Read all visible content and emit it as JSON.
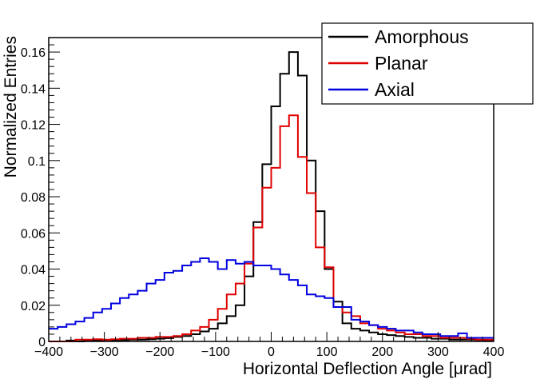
{
  "chart_data": {
    "type": "line",
    "style": "step-histogram",
    "xlabel": "Horizontal Deflection Angle [μrad]",
    "ylabel": "Normalized Entries",
    "xlim": [
      -400,
      400
    ],
    "ylim": [
      0,
      0.168
    ],
    "x_ticks": [
      -400,
      -300,
      -200,
      -100,
      0,
      100,
      200,
      300,
      400
    ],
    "x_tick_labels": [
      "−400",
      "−300",
      "−200",
      "−100",
      "0",
      "100",
      "200",
      "300",
      "400"
    ],
    "y_ticks": [
      0,
      0.02,
      0.04,
      0.06,
      0.08,
      0.1,
      0.12,
      0.14,
      0.16
    ],
    "y_tick_labels": [
      "0",
      "0.02",
      "0.04",
      "0.06",
      "0.08",
      "0.1",
      "0.12",
      "0.14",
      "0.16"
    ],
    "bin_edges_start": -400,
    "bin_width": 16,
    "legend_position": "top-right",
    "series": [
      {
        "name": "Amorphous",
        "color": "#000000",
        "values": [
          0.0,
          0.0,
          0.0005,
          0.0,
          0.0005,
          0.0005,
          0.0008,
          0.0005,
          0.0008,
          0.001,
          0.001,
          0.0012,
          0.0015,
          0.0018,
          0.0025,
          0.003,
          0.004,
          0.0055,
          0.007,
          0.01,
          0.014,
          0.02,
          0.036,
          0.066,
          0.098,
          0.13,
          0.148,
          0.16,
          0.147,
          0.1,
          0.072,
          0.04,
          0.022,
          0.01,
          0.007,
          0.006,
          0.005,
          0.004,
          0.0035,
          0.003,
          0.0025,
          0.002,
          0.002,
          0.0015,
          0.0015,
          0.001,
          0.001,
          0.001,
          0.0008,
          0.0005
        ]
      },
      {
        "name": "Planar",
        "color": "#e00000",
        "values": [
          0.0,
          0.0,
          0.0,
          0.001,
          0.001,
          0.0012,
          0.001,
          0.0012,
          0.0015,
          0.0015,
          0.002,
          0.002,
          0.0025,
          0.0025,
          0.003,
          0.004,
          0.006,
          0.008,
          0.012,
          0.018,
          0.026,
          0.032,
          0.043,
          0.063,
          0.085,
          0.096,
          0.119,
          0.125,
          0.102,
          0.082,
          0.052,
          0.041,
          0.019,
          0.016,
          0.014,
          0.01,
          0.009,
          0.007,
          0.006,
          0.005,
          0.004,
          0.004,
          0.003,
          0.003,
          0.002,
          0.002,
          0.002,
          0.0015,
          0.001,
          0.001
        ]
      },
      {
        "name": "Axial",
        "color": "#0000e0",
        "values": [
          0.007,
          0.008,
          0.0095,
          0.011,
          0.013,
          0.016,
          0.018,
          0.021,
          0.024,
          0.026,
          0.028,
          0.032,
          0.034,
          0.038,
          0.039,
          0.042,
          0.044,
          0.046,
          0.044,
          0.04,
          0.045,
          0.043,
          0.044,
          0.042,
          0.042,
          0.04,
          0.037,
          0.034,
          0.031,
          0.026,
          0.025,
          0.024,
          0.019,
          0.019,
          0.012,
          0.011,
          0.009,
          0.008,
          0.007,
          0.006,
          0.006,
          0.005,
          0.004,
          0.004,
          0.003,
          0.003,
          0.0045,
          0.002,
          0.002,
          0.002
        ]
      }
    ]
  }
}
